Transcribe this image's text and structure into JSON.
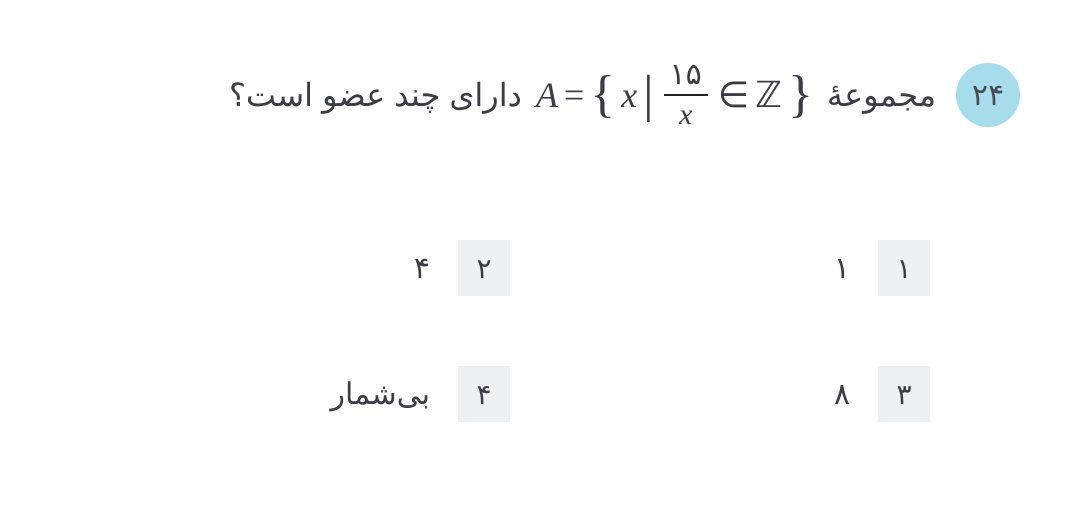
{
  "colors": {
    "badge_bg": "#a7dcec",
    "badge_text": "#4a4a55",
    "body_text": "#3c3c46",
    "option_badge_bg": "#eef1f4",
    "page_bg": "#ffffff"
  },
  "typography": {
    "question_fontsize": 32,
    "math_fontsize": 36,
    "option_fontsize": 30,
    "badge_fontsize": 30
  },
  "question": {
    "number": "۲۴",
    "lead": "مجموعهٔ",
    "tail": "دارای چند عضو است؟",
    "math": {
      "A": "A",
      "eq": "=",
      "lbrace": "{",
      "x": "x",
      "bar": "|",
      "frac_num": "۱۵",
      "frac_den": "x",
      "in": "∈",
      "Z": "ℤ",
      "rbrace": "}"
    }
  },
  "options": [
    {
      "num": "۱",
      "text": "۱"
    },
    {
      "num": "۲",
      "text": "۴"
    },
    {
      "num": "۳",
      "text": "۸"
    },
    {
      "num": "۴",
      "text": "بی‌شمار"
    }
  ]
}
